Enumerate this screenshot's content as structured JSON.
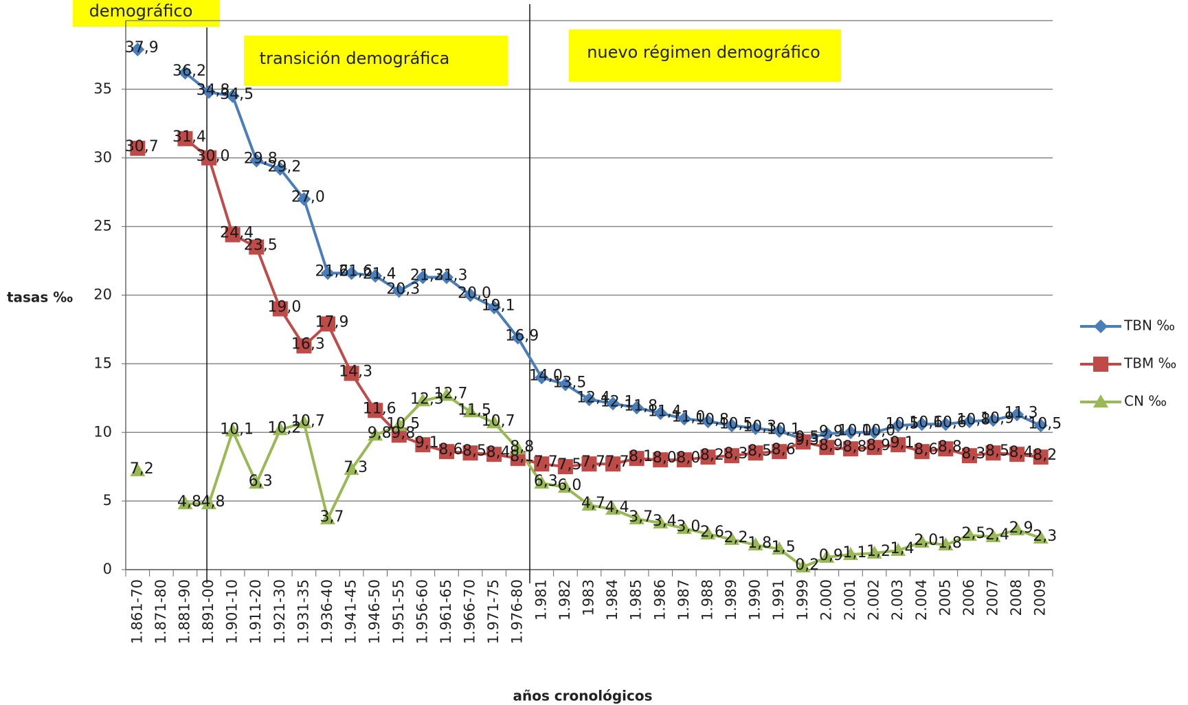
{
  "chart_data": {
    "type": "line",
    "annotations": [
      "demográfico",
      "transición demográfica",
      "nuevo régimen demográfico"
    ],
    "y_label": "tasas ‰",
    "x_label": "años cronológicos",
    "categories": [
      "1.861-70",
      "1.871-80",
      "1.881-90",
      "1.891-00",
      "1.901-10",
      "1.911-20",
      "1.921-30",
      "1.931-35",
      "1.936-40",
      "1.941-45",
      "1.946-50",
      "1.951-55",
      "1.956-60",
      "1.961-65",
      "1.966-70",
      "1.971-75",
      "1.976-80",
      "1.981",
      "1.982",
      "1983",
      "1.984",
      "1.985",
      "1.986",
      "1.987",
      "1.988",
      "1.989",
      "1.990",
      "1.991",
      "1.999",
      "2.000",
      "2.001",
      "2.002",
      "2.003",
      "2.004",
      "2005",
      "2006",
      "2007",
      "2008",
      "2009"
    ],
    "series": [
      {
        "name": "TBN ‰",
        "color": "#4a7ebb",
        "marker": "diamond",
        "values": [
          37.9,
          null,
          36.2,
          34.8,
          34.5,
          29.8,
          29.2,
          27.0,
          21.6,
          21.6,
          21.4,
          20.3,
          21.3,
          21.3,
          20.0,
          19.1,
          16.9,
          14.0,
          13.5,
          12.4,
          12.1,
          11.8,
          11.4,
          11.0,
          10.8,
          10.5,
          10.3,
          10.1,
          9.5,
          9.9,
          10.0,
          10.0,
          10.5,
          10.6,
          10.6,
          10.8,
          10.9,
          11.3,
          10.5
        ],
        "value_labels": [
          "37,9",
          null,
          "36,2",
          "34,8",
          "34,5",
          "29,8",
          "29,2",
          "27,0",
          "21,6",
          "21,6",
          "21,4",
          "20,3",
          "21,3",
          "21,3",
          "20,0",
          "19,1",
          "16,9",
          "14,0",
          "13,5",
          "12,4",
          "12,1",
          "11,8",
          "11,4",
          "11,0",
          "10,8",
          "10,5",
          "10,3",
          "10,1",
          "9,5",
          "9,9",
          "10,0",
          "10,0",
          "10,5",
          "10,6",
          "10,6",
          "10,8",
          "10,9",
          "11,3",
          "10,5"
        ]
      },
      {
        "name": "TBM ‰",
        "color": "#be4b48",
        "marker": "square",
        "values": [
          30.7,
          null,
          31.4,
          30.0,
          24.4,
          23.5,
          19.0,
          16.3,
          17.9,
          14.3,
          11.6,
          9.8,
          9.1,
          8.6,
          8.5,
          8.4,
          8.1,
          7.7,
          7.5,
          7.7,
          7.7,
          8.1,
          8.0,
          8.0,
          8.2,
          8.3,
          8.5,
          8.6,
          9.3,
          8.9,
          8.8,
          8.9,
          9.1,
          8.6,
          8.8,
          8.3,
          8.5,
          8.4,
          8.2
        ],
        "value_labels": [
          "30,7",
          null,
          "31,4",
          "30,0",
          "24,4",
          "23,5",
          "19,0",
          "16,3",
          "17,9",
          "14,3",
          "11,6",
          "9,8",
          "9,1",
          "8,6",
          "8,5",
          "8,4",
          "8,1",
          "7,7",
          "7,5",
          "7,7",
          "7,7",
          "8,1",
          "8,0",
          "8,0",
          "8,2",
          "8,3",
          "8,5",
          "8,6",
          "9,3",
          "8,9",
          "8,8",
          "8,9",
          "9,1",
          "8,6",
          "8,8",
          "8,3",
          "8,5",
          "8,4",
          "8,2"
        ]
      },
      {
        "name": "CN ‰",
        "color": "#98b954",
        "marker": "triangle",
        "values": [
          7.2,
          null,
          4.8,
          4.8,
          10.1,
          6.3,
          10.2,
          10.7,
          3.7,
          7.3,
          9.8,
          10.5,
          12.3,
          12.7,
          11.5,
          10.7,
          8.8,
          6.3,
          6.0,
          4.7,
          4.4,
          3.7,
          3.4,
          3.0,
          2.6,
          2.2,
          1.8,
          1.5,
          0.2,
          0.9,
          1.1,
          1.2,
          1.4,
          2.0,
          1.8,
          2.5,
          2.4,
          2.9,
          2.3
        ],
        "value_labels": [
          "7,2",
          null,
          "4,8",
          "4,8",
          "10,1",
          "6,3",
          "10,2",
          "10,7",
          "3,7",
          "7,3",
          "9,8",
          "10,5",
          "12,3",
          "12,7",
          "11,5",
          "10,7",
          "8,8",
          "6,3",
          "6,0",
          "4,7",
          "4,4",
          "3,7",
          "3,4",
          "3,0",
          "2,6",
          "2,2",
          "1,8",
          "1,5",
          "0,2",
          "0,9",
          "1,1",
          "1,2",
          "1,4",
          "2,0",
          "1,8",
          "2,5",
          "2,4",
          "2,9",
          "2,3"
        ]
      }
    ],
    "ylim": [
      0,
      40
    ],
    "yticks": [
      0,
      5,
      10,
      15,
      20,
      25,
      30,
      35
    ],
    "grid": true,
    "legend": "right"
  }
}
